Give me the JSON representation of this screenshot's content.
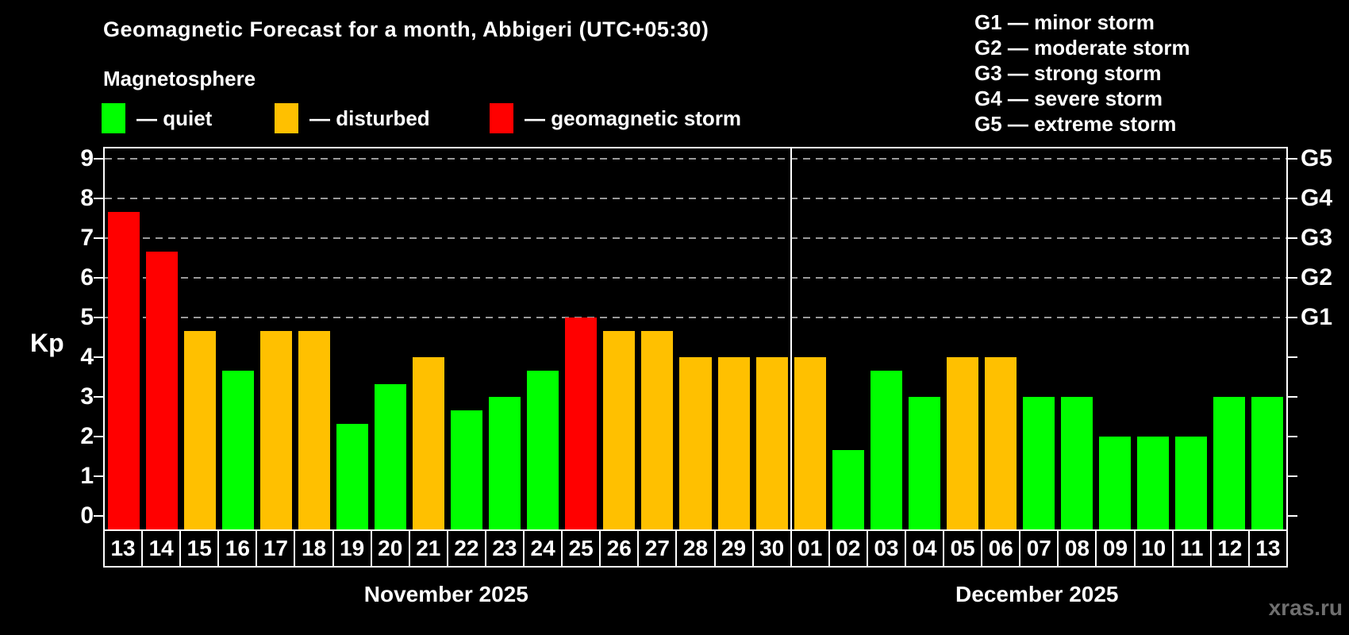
{
  "header": {
    "title": "Geomagnetic Forecast for a month, Abbigeri (UTC+05:30)",
    "subtitle": "Magnetosphere"
  },
  "legend": {
    "items": [
      {
        "key": "quiet",
        "label": "— quiet"
      },
      {
        "key": "disturbed",
        "label": "— disturbed"
      },
      {
        "key": "storm",
        "label": "— geomagnetic storm"
      }
    ]
  },
  "g_legend": {
    "items": [
      {
        "label": "G1 — minor storm"
      },
      {
        "label": "G2 — moderate storm"
      },
      {
        "label": "G3 — strong storm"
      },
      {
        "label": "G4 — severe storm"
      },
      {
        "label": "G5 — extreme storm"
      }
    ]
  },
  "watermark": "xras.ru",
  "colors": {
    "background": "#000000",
    "axis": "#ffffff",
    "grid": "#999999",
    "quiet": "#00ff00",
    "disturbed": "#ffc000",
    "storm": "#ff0000",
    "watermark": "#6f6f6f"
  },
  "chart_data": {
    "type": "bar",
    "title": "Geomagnetic Forecast for a month, Abbigeri (UTC+05:30)",
    "ylabel": "Kp",
    "ylim": [
      0,
      9
    ],
    "yticks": [
      0,
      1,
      2,
      3,
      4,
      5,
      6,
      7,
      8,
      9
    ],
    "grid": "dashed horizontal lines at Kp 5,6,7,8,9 only",
    "legend_position": "top",
    "g_scale": [
      {
        "kp": 5,
        "label": "G1"
      },
      {
        "kp": 6,
        "label": "G2"
      },
      {
        "kp": 7,
        "label": "G3"
      },
      {
        "kp": 8,
        "label": "G4"
      },
      {
        "kp": 9,
        "label": "G5"
      }
    ],
    "months": [
      {
        "label": "November 2025",
        "days": 18
      },
      {
        "label": "December 2025",
        "days": 13
      }
    ],
    "bars": [
      {
        "day": "13",
        "value": 7.67,
        "status": "storm"
      },
      {
        "day": "14",
        "value": 6.67,
        "status": "storm"
      },
      {
        "day": "15",
        "value": 4.67,
        "status": "disturbed"
      },
      {
        "day": "16",
        "value": 3.67,
        "status": "quiet"
      },
      {
        "day": "17",
        "value": 4.67,
        "status": "disturbed"
      },
      {
        "day": "18",
        "value": 4.67,
        "status": "disturbed"
      },
      {
        "day": "19",
        "value": 2.33,
        "status": "quiet"
      },
      {
        "day": "20",
        "value": 3.33,
        "status": "quiet"
      },
      {
        "day": "21",
        "value": 4.0,
        "status": "disturbed"
      },
      {
        "day": "22",
        "value": 2.67,
        "status": "quiet"
      },
      {
        "day": "23",
        "value": 3.0,
        "status": "quiet"
      },
      {
        "day": "24",
        "value": 3.67,
        "status": "quiet"
      },
      {
        "day": "25",
        "value": 5.0,
        "status": "storm"
      },
      {
        "day": "26",
        "value": 4.67,
        "status": "disturbed"
      },
      {
        "day": "27",
        "value": 4.67,
        "status": "disturbed"
      },
      {
        "day": "28",
        "value": 4.0,
        "status": "disturbed"
      },
      {
        "day": "29",
        "value": 4.0,
        "status": "disturbed"
      },
      {
        "day": "30",
        "value": 4.0,
        "status": "disturbed"
      },
      {
        "day": "01",
        "value": 4.0,
        "status": "disturbed"
      },
      {
        "day": "02",
        "value": 1.67,
        "status": "quiet"
      },
      {
        "day": "03",
        "value": 3.67,
        "status": "quiet"
      },
      {
        "day": "04",
        "value": 3.0,
        "status": "quiet"
      },
      {
        "day": "05",
        "value": 4.0,
        "status": "disturbed"
      },
      {
        "day": "06",
        "value": 4.0,
        "status": "disturbed"
      },
      {
        "day": "07",
        "value": 3.0,
        "status": "quiet"
      },
      {
        "day": "08",
        "value": 3.0,
        "status": "quiet"
      },
      {
        "day": "09",
        "value": 2.0,
        "status": "quiet"
      },
      {
        "day": "10",
        "value": 2.0,
        "status": "quiet"
      },
      {
        "day": "11",
        "value": 2.0,
        "status": "quiet"
      },
      {
        "day": "12",
        "value": 3.0,
        "status": "quiet"
      },
      {
        "day": "13",
        "value": 3.0,
        "status": "quiet"
      }
    ]
  }
}
